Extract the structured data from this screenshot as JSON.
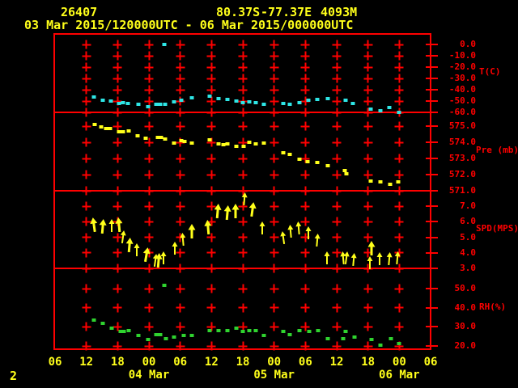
{
  "colors": {
    "background": "#000000",
    "grid_red": "#ff0000",
    "label_yellow": "#ffff1a",
    "temperature_cyan": "#2ee6e6",
    "pressure_yellow": "#ffff1a",
    "wind_yellow": "#ffff1a",
    "humidity_green": "#2fd32f"
  },
  "header": {
    "station_id": "26407",
    "latitude": "80.37S",
    "longitude": "-77.37E",
    "elevation": "4093M",
    "time_range": "03 Mar 2015/120000UTC - 06 Mar 2015/000000UTC"
  },
  "page_number": "2",
  "x_axis": {
    "start_label_time": "03 Mar 06UTC",
    "hours_span": 72,
    "grid_hours": [
      6,
      12,
      18,
      24,
      30,
      36,
      42,
      48,
      54,
      60,
      66
    ],
    "tick_labels": [
      {
        "h": 0,
        "t": "06"
      },
      {
        "h": 6,
        "t": "12"
      },
      {
        "h": 12,
        "t": "18"
      },
      {
        "h": 18,
        "t": "00"
      },
      {
        "h": 24,
        "t": "06"
      },
      {
        "h": 30,
        "t": "12"
      },
      {
        "h": 36,
        "t": "18"
      },
      {
        "h": 42,
        "t": "00"
      },
      {
        "h": 48,
        "t": "06"
      },
      {
        "h": 54,
        "t": "12"
      },
      {
        "h": 60,
        "t": "18"
      },
      {
        "h": 66,
        "t": "00"
      },
      {
        "h": 72,
        "t": "06"
      }
    ],
    "date_labels": [
      {
        "h": 18,
        "t": "04 Mar"
      },
      {
        "h": 42,
        "t": "05 Mar"
      },
      {
        "h": 66,
        "t": "06 Mar"
      }
    ]
  },
  "chart_data": [
    {
      "type": "scatter",
      "series": "temperature",
      "ylabel": "T(C)",
      "color": "#2ee6e6",
      "tick_values": [
        0,
        -10,
        -20,
        -30,
        -40,
        -50,
        -60
      ],
      "tick_labels": [
        "0.0",
        "-10.0",
        "-20.0",
        "-30.0",
        "-40.0",
        "-50.0",
        "-60.0"
      ],
      "ylim": [
        -60,
        0
      ],
      "points": [
        [
          7.4,
          -46.5
        ],
        [
          9.2,
          -49.5
        ],
        [
          10.7,
          -50
        ],
        [
          12.3,
          -52
        ],
        [
          13.0,
          -51.5
        ],
        [
          14.0,
          -52
        ],
        [
          16.0,
          -53
        ],
        [
          17.8,
          -55
        ],
        [
          19.4,
          -53
        ],
        [
          20.2,
          -53
        ],
        [
          20.9,
          0.3
        ],
        [
          21.1,
          -53
        ],
        [
          22.8,
          -50.5
        ],
        [
          24.2,
          -49.5
        ],
        [
          26.2,
          -47
        ],
        [
          29.6,
          -45.5
        ],
        [
          31.3,
          -48
        ],
        [
          33.1,
          -48.5
        ],
        [
          34.8,
          -50
        ],
        [
          36.0,
          -51.5
        ],
        [
          37.2,
          -50.5
        ],
        [
          38.5,
          -51.5
        ],
        [
          40.0,
          -53
        ],
        [
          43.8,
          -52
        ],
        [
          45.0,
          -53
        ],
        [
          46.9,
          -51.5
        ],
        [
          48.6,
          -49.5
        ],
        [
          50.3,
          -48.5
        ],
        [
          52.3,
          -48
        ],
        [
          55.7,
          -49.5
        ],
        [
          57.1,
          -52
        ],
        [
          60.5,
          -57
        ],
        [
          62.4,
          -58.5
        ],
        [
          64.1,
          -56
        ],
        [
          66.0,
          -60
        ]
      ]
    },
    {
      "type": "scatter",
      "series": "pressure",
      "ylabel": "Pre (mb)",
      "color": "#ffff1a",
      "tick_values": [
        575,
        574,
        573,
        572,
        571
      ],
      "tick_labels": [
        "575.0",
        "574.0",
        "573.0",
        "572.0",
        "571.0"
      ],
      "ylim": [
        571,
        575
      ],
      "points": [
        [
          7.6,
          575.1
        ],
        [
          8.8,
          574.95
        ],
        [
          9.8,
          574.85
        ],
        [
          10.6,
          574.85
        ],
        [
          12.3,
          574.65
        ],
        [
          13.0,
          574.65
        ],
        [
          14.1,
          574.7
        ],
        [
          15.8,
          574.4
        ],
        [
          17.4,
          574.25
        ],
        [
          19.7,
          574.3
        ],
        [
          20.3,
          574.3
        ],
        [
          21.1,
          574.2
        ],
        [
          22.8,
          573.95
        ],
        [
          24.2,
          574.1
        ],
        [
          24.8,
          574.05
        ],
        [
          26.2,
          573.95
        ],
        [
          29.6,
          574.15
        ],
        [
          31.3,
          573.9
        ],
        [
          32.3,
          573.85
        ],
        [
          33.1,
          573.9
        ],
        [
          34.8,
          573.75
        ],
        [
          36.2,
          573.75
        ],
        [
          37.2,
          574.0
        ],
        [
          38.5,
          573.9
        ],
        [
          40.0,
          573.95
        ],
        [
          43.8,
          573.35
        ],
        [
          45.0,
          573.25
        ],
        [
          46.9,
          572.95
        ],
        [
          48.4,
          572.8
        ],
        [
          50.3,
          572.75
        ],
        [
          52.3,
          572.55
        ],
        [
          55.6,
          572.25
        ],
        [
          55.9,
          572.05
        ],
        [
          60.5,
          571.6
        ],
        [
          62.4,
          571.55
        ],
        [
          64.2,
          571.4
        ],
        [
          65.8,
          571.55
        ]
      ]
    },
    {
      "type": "wind_arrows",
      "series": "wind_speed",
      "ylabel": "SPD(MPS)",
      "color": "#ffff1a",
      "tick_values": [
        7,
        6,
        5,
        4,
        3
      ],
      "tick_labels": [
        "7.0",
        "6.0",
        "5.0",
        "4.0",
        "3.0"
      ],
      "ylim": [
        3,
        7
      ],
      "note": "points are [hour, speed_mps, tilt_deg, bold]",
      "points": [
        [
          7.4,
          5.8,
          -8,
          2
        ],
        [
          9.2,
          5.7,
          5,
          2
        ],
        [
          10.9,
          5.75,
          0,
          1
        ],
        [
          12.3,
          5.8,
          -5,
          2
        ],
        [
          13.0,
          5.05,
          8,
          1
        ],
        [
          14.3,
          4.5,
          5,
          2
        ],
        [
          15.7,
          4.2,
          0,
          1
        ],
        [
          17.5,
          3.9,
          10,
          2
        ],
        [
          19.2,
          3.5,
          8,
          1
        ],
        [
          19.9,
          3.5,
          5,
          2
        ],
        [
          20.8,
          3.7,
          0,
          1
        ],
        [
          23.0,
          4.3,
          0,
          1
        ],
        [
          24.5,
          4.85,
          -5,
          1
        ],
        [
          26.2,
          5.4,
          0,
          2
        ],
        [
          29.3,
          5.65,
          -5,
          2
        ],
        [
          31.2,
          6.7,
          5,
          2
        ],
        [
          33.1,
          6.6,
          5,
          2
        ],
        [
          34.6,
          6.7,
          0,
          2
        ],
        [
          36.3,
          7.45,
          5,
          1
        ],
        [
          37.9,
          6.8,
          8,
          2
        ],
        [
          39.7,
          5.6,
          0,
          1
        ],
        [
          43.8,
          4.95,
          -8,
          1
        ],
        [
          45.2,
          5.4,
          -5,
          1
        ],
        [
          46.7,
          5.6,
          -5,
          1
        ],
        [
          48.6,
          5.3,
          0,
          1
        ],
        [
          50.3,
          4.8,
          5,
          1
        ],
        [
          52.1,
          3.65,
          0,
          1
        ],
        [
          55.3,
          3.7,
          -5,
          1
        ],
        [
          55.9,
          3.7,
          8,
          1
        ],
        [
          57.3,
          3.55,
          5,
          1
        ],
        [
          60.3,
          3.35,
          0,
          1
        ],
        [
          60.6,
          4.3,
          0,
          2
        ],
        [
          62.2,
          3.6,
          0,
          1
        ],
        [
          64.1,
          3.6,
          5,
          1
        ],
        [
          65.6,
          3.65,
          5,
          1
        ]
      ]
    },
    {
      "type": "scatter",
      "series": "relative_humidity",
      "ylabel": "RH(%)",
      "color": "#2fd32f",
      "tick_values": [
        50,
        40,
        30,
        20
      ],
      "tick_labels": [
        "50.0",
        "40.0",
        "30.0",
        "20.0"
      ],
      "ylim": [
        20,
        50
      ],
      "points": [
        [
          7.4,
          33.5
        ],
        [
          9.2,
          32
        ],
        [
          10.9,
          29.5
        ],
        [
          12.6,
          27.5
        ],
        [
          13.2,
          27.5
        ],
        [
          14.1,
          28
        ],
        [
          16.0,
          25.5
        ],
        [
          17.8,
          23.5
        ],
        [
          19.4,
          26
        ],
        [
          20.2,
          26
        ],
        [
          20.9,
          51.5
        ],
        [
          21.3,
          24
        ],
        [
          22.8,
          24.5
        ],
        [
          24.7,
          25.5
        ],
        [
          26.2,
          25.5
        ],
        [
          29.6,
          28
        ],
        [
          31.3,
          28
        ],
        [
          33.1,
          28
        ],
        [
          34.8,
          29.5
        ],
        [
          36.0,
          27.5
        ],
        [
          37.2,
          28
        ],
        [
          38.5,
          28
        ],
        [
          40.0,
          25.5
        ],
        [
          43.8,
          27.5
        ],
        [
          45.0,
          26
        ],
        [
          46.9,
          28
        ],
        [
          48.7,
          27.5
        ],
        [
          50.4,
          28
        ],
        [
          52.3,
          24
        ],
        [
          55.2,
          24
        ],
        [
          55.7,
          27.5
        ],
        [
          57.4,
          24.5
        ],
        [
          60.7,
          23.5
        ],
        [
          62.4,
          20.3
        ],
        [
          64.4,
          24
        ],
        [
          66.0,
          21.3
        ]
      ]
    }
  ]
}
